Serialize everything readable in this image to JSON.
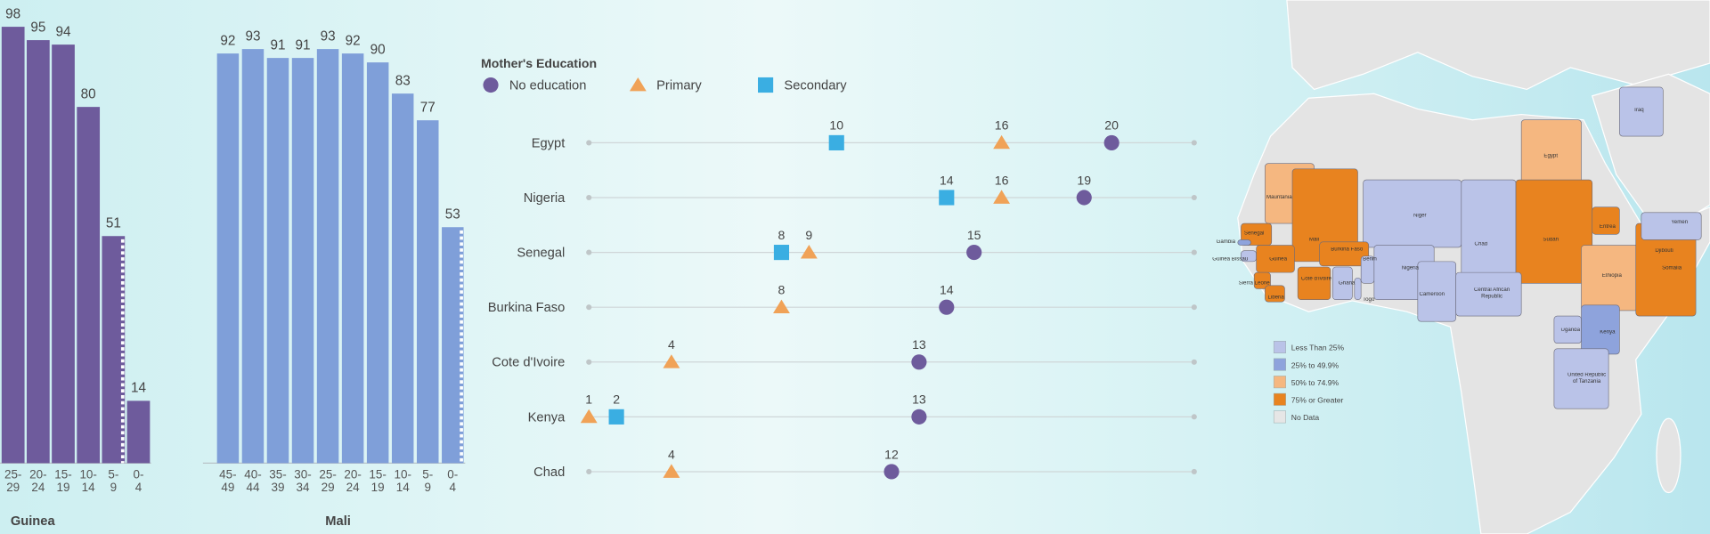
{
  "chart_data": [
    {
      "type": "bar",
      "xlabel": "Guinea",
      "color": "#6e5b9c",
      "categories": [
        "25-\n29",
        "20-\n24",
        "15-\n19",
        "10-\n14",
        "5-\n9",
        "0-\n4"
      ],
      "values": [
        98,
        95,
        94,
        80,
        51,
        14
      ],
      "dotted": [
        false,
        false,
        false,
        false,
        true,
        false
      ],
      "ylim": [
        0,
        100
      ]
    },
    {
      "type": "bar",
      "xlabel": "Mali",
      "color": "#7f9fd9",
      "categories": [
        "45-\n49",
        "40-\n44",
        "35-\n39",
        "30-\n34",
        "25-\n29",
        "20-\n24",
        "15-\n19",
        "10-\n14",
        "5-\n9",
        "0-\n4"
      ],
      "values": [
        92,
        93,
        91,
        91,
        93,
        92,
        90,
        83,
        77,
        53
      ],
      "dotted": [
        false,
        false,
        false,
        false,
        false,
        false,
        false,
        false,
        false,
        true
      ],
      "ylim": [
        0,
        100
      ]
    },
    {
      "type": "dot",
      "legend_title": "Mother's Education",
      "categories": [
        "Egypt",
        "Nigeria",
        "Senegal",
        "Burkina Faso",
        "Cote d'Ivoire",
        "Kenya",
        "Chad"
      ],
      "series": [
        {
          "name": "No education",
          "color": "#6e5b9c",
          "marker": "circle",
          "values": [
            20,
            19,
            15,
            14,
            13,
            13,
            12
          ]
        },
        {
          "name": "Primary",
          "color": "#f0a257",
          "marker": "triangle",
          "values": [
            16,
            16,
            9,
            8,
            4,
            1,
            4
          ]
        },
        {
          "name": "Secondary",
          "color": "#3aaee2",
          "marker": "square",
          "values": [
            10,
            14,
            8,
            null,
            null,
            2,
            null
          ]
        }
      ],
      "xlim": [
        1,
        23
      ]
    },
    {
      "type": "map",
      "legend": [
        {
          "label": "Less Than 25%",
          "color": "#bac3e8"
        },
        {
          "label": "25% to 49.9%",
          "color": "#8ea3dc"
        },
        {
          "label": "50% to 74.9%",
          "color": "#f5b780"
        },
        {
          "label": "75% or Greater",
          "color": "#e8831f"
        },
        {
          "label": "No Data",
          "color": "#e6e6e6"
        }
      ],
      "regions": [
        {
          "name": "Egypt",
          "color": "#f5b780"
        },
        {
          "name": "Mauritania",
          "color": "#f5b780"
        },
        {
          "name": "Mali",
          "color": "#e8831f"
        },
        {
          "name": "Niger",
          "color": "#bac3e8"
        },
        {
          "name": "Chad",
          "color": "#bac3e8"
        },
        {
          "name": "Sudan",
          "color": "#e8831f"
        },
        {
          "name": "Eritrea",
          "color": "#e8831f"
        },
        {
          "name": "Djibouti",
          "color": "#bac3e8"
        },
        {
          "name": "Ethiopia",
          "color": "#f5b780"
        },
        {
          "name": "Somalia",
          "color": "#e8831f"
        },
        {
          "name": "Yemen",
          "color": "#bac3e8"
        },
        {
          "name": "Iraq",
          "color": "#bac3e8"
        },
        {
          "name": "Senegal",
          "color": "#e8831f"
        },
        {
          "name": "Gambia",
          "color": "#8ea3dc"
        },
        {
          "name": "Guinea Bissau",
          "color": "#bac3e8"
        },
        {
          "name": "Guinea",
          "color": "#e8831f"
        },
        {
          "name": "Sierra Leone",
          "color": "#e8831f"
        },
        {
          "name": "Liberia",
          "color": "#e8831f"
        },
        {
          "name": "Cote d'Ivoire",
          "color": "#e8831f"
        },
        {
          "name": "Ghana",
          "color": "#bac3e8"
        },
        {
          "name": "Togo",
          "color": "#bac3e8"
        },
        {
          "name": "Burkina Faso",
          "color": "#e8831f"
        },
        {
          "name": "Benin",
          "color": "#bac3e8"
        },
        {
          "name": "Nigeria",
          "color": "#bac3e8"
        },
        {
          "name": "Cameroon",
          "color": "#bac3e8"
        },
        {
          "name": "Central African Republic",
          "color": "#bac3e8"
        },
        {
          "name": "Uganda",
          "color": "#bac3e8"
        },
        {
          "name": "Kenya",
          "color": "#8ea3dc"
        },
        {
          "name": "United Republic of Tanzania",
          "color": "#bac3e8"
        }
      ]
    }
  ]
}
